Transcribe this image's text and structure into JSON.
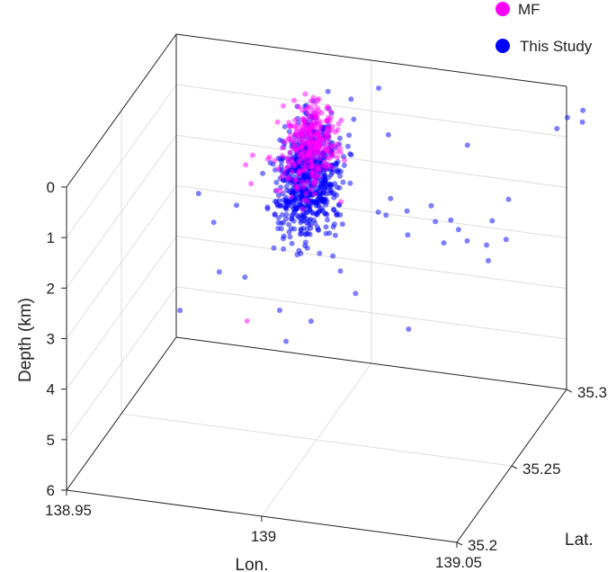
{
  "chart_data": {
    "type": "scatter",
    "projection": "3d",
    "title": "",
    "legend": {
      "placement": "top-right",
      "entries": [
        {
          "label": "MF",
          "color": "#ff00ff"
        },
        {
          "label": "This Study",
          "color": "#0000ff"
        }
      ]
    },
    "axes": {
      "x": {
        "label": "Lon.",
        "range": [
          138.95,
          139.05
        ],
        "ticks": [
          138.95,
          139,
          139.05
        ],
        "tick_labels": [
          "138.95",
          "139",
          "139.05"
        ]
      },
      "y": {
        "label": "Lat.",
        "range": [
          35.2,
          35.3
        ],
        "ticks": [
          35.2,
          35.25,
          35.3
        ],
        "tick_labels": [
          "35.2",
          "35.25",
          "35.3"
        ]
      },
      "z": {
        "label": "Depth (km)",
        "range": [
          0,
          6
        ],
        "reversed": true,
        "ticks": [
          0,
          1,
          2,
          3,
          4,
          5,
          6
        ],
        "tick_labels": [
          "0",
          "1",
          "2",
          "3",
          "4",
          "5",
          "6"
        ]
      }
    },
    "grid": true,
    "series": [
      {
        "name": "This Study",
        "color": "#0000ff",
        "opacity": 0.5,
        "cluster": {
          "center": [
            138.9925,
            35.27,
            1.5
          ],
          "spread": [
            0.0035,
            0.007,
            0.55
          ],
          "count": 700
        },
        "points": [
          [
            139.005,
            35.21,
            0.3
          ],
          [
            139.026,
            35.225,
            0.2
          ],
          [
            139.035,
            35.23,
            0.4
          ],
          [
            139.022,
            35.228,
            0.6
          ],
          [
            139.042,
            35.223,
            0.4
          ],
          [
            139.052,
            35.22,
            0.7
          ],
          [
            139.012,
            35.229,
            1.9
          ],
          [
            139.026,
            35.24,
            0.9
          ],
          [
            139.031,
            35.248,
            1.3
          ],
          [
            139.034,
            35.245,
            1.6
          ],
          [
            138.995,
            35.24,
            3.8
          ],
          [
            139.0,
            35.245,
            3.5
          ],
          [
            139.01,
            35.25,
            3.0
          ],
          [
            139.035,
            35.263,
            0.2
          ],
          [
            139.045,
            35.25,
            1.2
          ],
          [
            139.052,
            35.24,
            0.4
          ],
          [
            138.965,
            35.267,
            2.0
          ],
          [
            138.97,
            35.263,
            2.4
          ],
          [
            138.975,
            35.266,
            2.1
          ],
          [
            139.025,
            35.245,
            3.4
          ],
          [
            139.054,
            35.277,
            0.1
          ],
          [
            139.055,
            35.283,
            0.05
          ],
          [
            139.057,
            35.29,
            0.1
          ],
          [
            139.058,
            35.286,
            0.2
          ],
          [
            138.965,
            35.25,
            3.8
          ],
          [
            138.972,
            35.261,
            3.3
          ],
          [
            138.978,
            35.263,
            3.4
          ],
          [
            138.98,
            35.279,
            1.6
          ],
          [
            138.983,
            35.28,
            1.5
          ],
          [
            138.986,
            35.284,
            1.2
          ],
          [
            138.99,
            35.296,
            0.6
          ],
          [
            139.003,
            35.296,
            0.4
          ],
          [
            139.008,
            35.287,
            1.0
          ],
          [
            138.99,
            35.252,
            3.6
          ],
          [
            138.987,
            35.286,
            2.3
          ],
          [
            139.04,
            35.245,
            1.5
          ],
          [
            139.044,
            35.25,
            2.0
          ],
          [
            139.048,
            35.252,
            1.6
          ],
          [
            139.015,
            35.26,
            1.7
          ],
          [
            139.02,
            35.262,
            2.1
          ],
          [
            139.042,
            35.23,
            0.8
          ],
          [
            139.0,
            35.235,
            0.9
          ]
        ]
      },
      {
        "name": "MF",
        "color": "#ff00ff",
        "opacity": 0.5,
        "cluster": {
          "center": [
            138.991,
            35.276,
            1.1
          ],
          "spread": [
            0.003,
            0.006,
            0.4
          ],
          "count": 300
        },
        "points": [
          [
            138.985,
            35.24,
            3.5
          ],
          [
            138.979,
            35.265,
            1.6
          ],
          [
            138.978,
            35.27,
            1.2
          ]
        ]
      }
    ]
  }
}
